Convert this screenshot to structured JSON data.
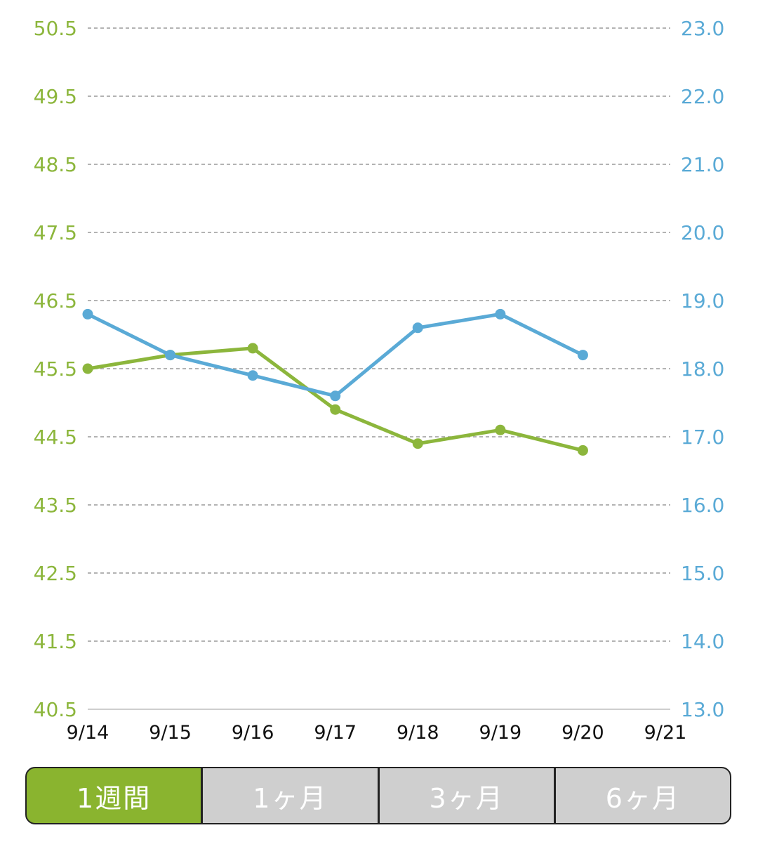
{
  "colors": {
    "left_axis": "#8cb63c",
    "right_axis": "#5aaad6",
    "green_series": "#8cb63c",
    "blue_series": "#5aaad6",
    "grid": "#9a9a9a",
    "active_tab": "#8ab42f",
    "inactive_tab": "#cfcfcf"
  },
  "chart_data": {
    "type": "line",
    "title": "",
    "xlabel": "",
    "ylabel": "",
    "x": [
      "9/14",
      "9/15",
      "9/16",
      "9/17",
      "9/18",
      "9/19",
      "9/20",
      "9/21"
    ],
    "y_left": {
      "range": [
        40.5,
        50.5
      ],
      "ticks": [
        "50.5",
        "49.5",
        "48.5",
        "47.5",
        "46.5",
        "45.5",
        "44.5",
        "43.5",
        "42.5",
        "41.5",
        "40.5"
      ]
    },
    "y_right": {
      "range": [
        13.0,
        23.0
      ],
      "ticks": [
        "23.0",
        "22.0",
        "21.0",
        "20.0",
        "19.0",
        "18.0",
        "17.0",
        "16.0",
        "15.0",
        "14.0",
        "13.0"
      ]
    },
    "grid": true,
    "series": [
      {
        "axis": "left",
        "color": "#8cb63c",
        "values": [
          45.5,
          45.7,
          45.8,
          44.9,
          44.4,
          44.6,
          44.3,
          null
        ]
      },
      {
        "axis": "right",
        "color": "#5aaad6",
        "values": [
          18.8,
          18.2,
          17.9,
          17.6,
          18.6,
          18.8,
          18.2,
          null
        ]
      }
    ]
  },
  "tabs": [
    {
      "label": "1週間",
      "active": true
    },
    {
      "label": "1ヶ月",
      "active": false
    },
    {
      "label": "3ヶ月",
      "active": false
    },
    {
      "label": "6ヶ月",
      "active": false
    }
  ]
}
